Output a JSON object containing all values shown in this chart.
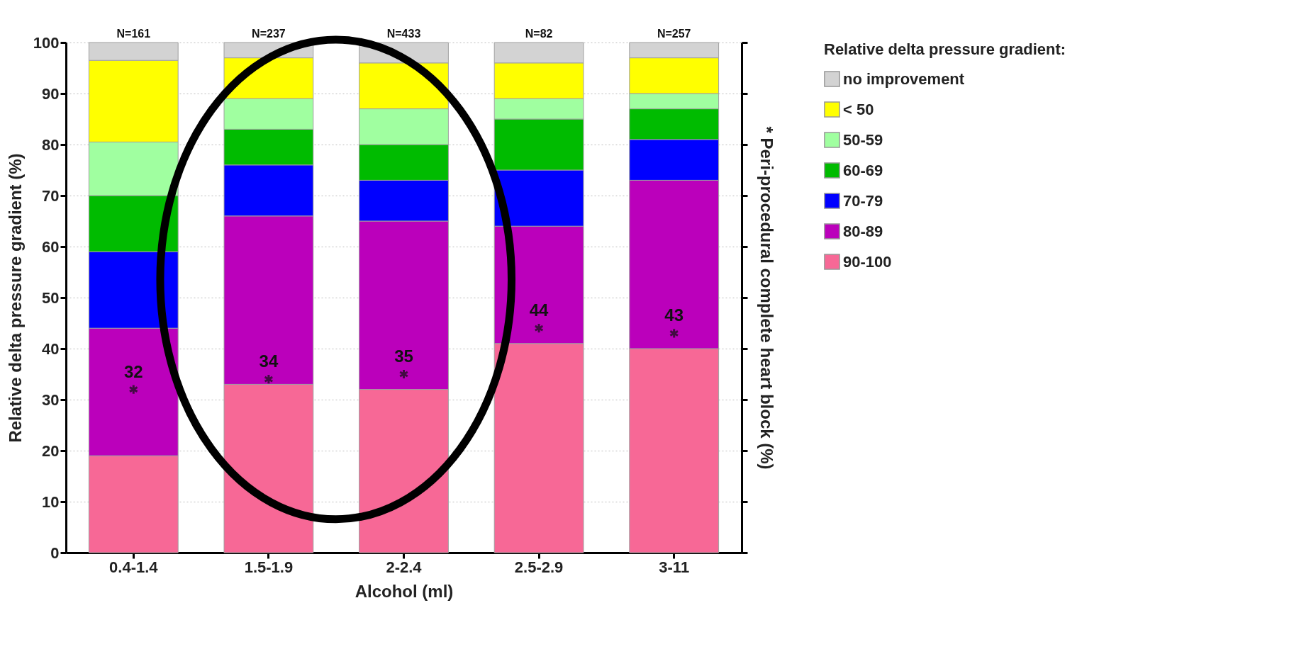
{
  "chart_data": {
    "type": "bar",
    "stacked": true,
    "xlabel": "Alcohol (ml)",
    "ylabel": "Relative delta pressure gradient (%)",
    "y2label": "* Peri-procedural complete heart block (%)",
    "legend_title": "Relative delta pressure gradient:",
    "categories": [
      "0.4-1.4",
      "1.5-1.9",
      "2-2.4",
      "2.5-2.9",
      "3-11"
    ],
    "series": [
      {
        "name": "90-100",
        "color": "#f76896",
        "values": [
          19,
          33,
          32,
          41,
          40
        ]
      },
      {
        "name": "80-89",
        "color": "#bb00bb",
        "values": [
          25,
          33,
          33,
          23,
          33
        ]
      },
      {
        "name": "70-79",
        "color": "#0000ff",
        "values": [
          15,
          10,
          8,
          11,
          8
        ]
      },
      {
        "name": "60-69",
        "color": "#00bb00",
        "values": [
          11,
          7,
          7,
          10,
          6
        ]
      },
      {
        "name": "50-59",
        "color": "#a0ffa0",
        "values": [
          10.5,
          6,
          7,
          4,
          3
        ]
      },
      {
        "name": "< 50",
        "color": "#ffff00",
        "values": [
          16,
          8,
          9,
          7,
          7
        ]
      },
      {
        "name": "no improvement",
        "color": "#d3d3d3",
        "values": [
          3.5,
          3,
          4,
          4,
          3
        ]
      },
      {
        "type": "scatter",
        "axis": "y2",
        "marker": "cross",
        "color": "#111111",
        "values": [
          32,
          34,
          35,
          44,
          43
        ],
        "value_labels": [
          "32",
          "34",
          "35",
          "44",
          "43"
        ]
      }
    ],
    "ylim": [
      0,
      100
    ],
    "yticks": [
      0,
      10,
      20,
      30,
      40,
      50,
      60,
      70,
      80,
      90,
      100
    ],
    "y2lim": [
      0,
      100
    ],
    "y2ticks": [
      {
        "value": 0,
        "label": null
      },
      {
        "value": 10,
        "label": null
      },
      {
        "value": 20,
        "label": null
      },
      {
        "value": 30,
        "label": null
      },
      {
        "value": 40,
        "label": null
      },
      {
        "value": 50,
        "label": null
      },
      {
        "value": 60,
        "label": null
      },
      {
        "value": 70,
        "label": null
      },
      {
        "value": 80,
        "label": null
      },
      {
        "value": 90,
        "label": null
      },
      {
        "value": 100,
        "label": null
      }
    ],
    "grid": "y",
    "legend": "right",
    "annotations": [
      "N=161",
      "N=237",
      "N=433",
      "N=82",
      "N=257"
    ]
  }
}
